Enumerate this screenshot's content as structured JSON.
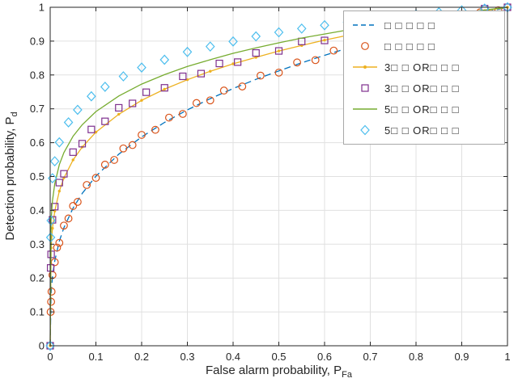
{
  "axes": {
    "xlabel": {
      "text": "False alarm probability, P",
      "sub": "Fa"
    },
    "ylabel": {
      "text": "Detection probability, P",
      "sub": "d"
    },
    "tick_labels": [
      "0",
      "0.1",
      "0.2",
      "0.3",
      "0.4",
      "0.5",
      "0.6",
      "0.7",
      "0.8",
      "0.9",
      "1"
    ]
  },
  "legend": {
    "entries": [
      {
        "label": "□ □ □ □ □",
        "swatch": "dash-line",
        "color": "#0072BD"
      },
      {
        "label": "□ □ □ □ □",
        "swatch": "circle",
        "color": "#D95319"
      },
      {
        "label": "3□ □ OR□ □ □",
        "swatch": "line-dot",
        "color": "#EDB120"
      },
      {
        "label": "3□ □ OR□ □ □",
        "swatch": "square",
        "color": "#7E2F8E"
      },
      {
        "label": "5□ □ OR□ □ □",
        "swatch": "line",
        "color": "#77AC30"
      },
      {
        "label": "5□ □ OR□ □ □",
        "swatch": "diamond",
        "color": "#4DBEEE"
      }
    ]
  },
  "chart_data": {
    "type": "line",
    "title": "",
    "xlabel": "False alarm probability, P_Fa",
    "ylabel": "Detection probability, P_d",
    "xlim": [
      0,
      1
    ],
    "ylim": [
      0,
      1
    ],
    "xticks": [
      0,
      0.1,
      0.2,
      0.3,
      0.4,
      0.5,
      0.6,
      0.7,
      0.8,
      0.9,
      1
    ],
    "yticks": [
      0,
      0.1,
      0.2,
      0.3,
      0.4,
      0.5,
      0.6,
      0.7,
      0.8,
      0.9,
      1
    ],
    "grid": true,
    "legend_position": "northeast",
    "series": [
      {
        "name": "single-user-theory",
        "color": "#0072BD",
        "line": "dashed",
        "marker": "none",
        "x": [
          0,
          0.002,
          0.005,
          0.01,
          0.02,
          0.03,
          0.05,
          0.07,
          0.1,
          0.15,
          0.2,
          0.25,
          0.3,
          0.35,
          0.4,
          0.45,
          0.5,
          0.55,
          0.6,
          0.65,
          0.7,
          0.75,
          0.8,
          0.85,
          0.9,
          0.95,
          1
        ],
        "y": [
          0,
          0.155,
          0.204,
          0.251,
          0.309,
          0.349,
          0.407,
          0.45,
          0.501,
          0.566,
          0.617,
          0.66,
          0.697,
          0.73,
          0.76,
          0.787,
          0.812,
          0.836,
          0.858,
          0.879,
          0.899,
          0.917,
          0.935,
          0.952,
          0.969,
          0.985,
          1
        ]
      },
      {
        "name": "single-user-sim",
        "color": "#D95319",
        "line": "none",
        "marker": "circle",
        "x": [
          0,
          0.001,
          0.002,
          0.003,
          0.005,
          0.01,
          0.015,
          0.02,
          0.03,
          0.04,
          0.05,
          0.06,
          0.08,
          0.1,
          0.12,
          0.14,
          0.16,
          0.18,
          0.2,
          0.23,
          0.26,
          0.29,
          0.32,
          0.35,
          0.38,
          0.42,
          0.46,
          0.5,
          0.54,
          0.58,
          0.62,
          0.66,
          0.7,
          0.74,
          0.78,
          0.82,
          0.86,
          0.9,
          0.94,
          0.98,
          1
        ],
        "y": [
          0,
          0.1,
          0.13,
          0.16,
          0.209,
          0.247,
          0.29,
          0.304,
          0.355,
          0.376,
          0.413,
          0.425,
          0.475,
          0.496,
          0.535,
          0.549,
          0.583,
          0.593,
          0.623,
          0.638,
          0.674,
          0.685,
          0.717,
          0.725,
          0.754,
          0.766,
          0.798,
          0.807,
          0.837,
          0.844,
          0.872,
          0.878,
          0.905,
          0.909,
          0.934,
          0.938,
          0.961,
          0.965,
          0.985,
          0.991,
          1
        ]
      },
      {
        "name": "or3-theory",
        "color": "#EDB120",
        "line": "solid",
        "marker": "dot",
        "x": [
          0,
          0.002,
          0.005,
          0.01,
          0.02,
          0.03,
          0.05,
          0.07,
          0.1,
          0.15,
          0.2,
          0.25,
          0.3,
          0.35,
          0.4,
          0.45,
          0.5,
          0.55,
          0.6,
          0.65,
          0.7,
          0.75,
          0.8,
          0.85,
          0.9,
          0.95,
          1
        ],
        "y": [
          0,
          0.289,
          0.347,
          0.398,
          0.457,
          0.496,
          0.549,
          0.587,
          0.631,
          0.684,
          0.725,
          0.758,
          0.786,
          0.811,
          0.833,
          0.852,
          0.871,
          0.887,
          0.903,
          0.917,
          0.931,
          0.944,
          0.956,
          0.968,
          0.979,
          0.99,
          1
        ]
      },
      {
        "name": "or3-sim",
        "color": "#7E2F8E",
        "line": "none",
        "marker": "square",
        "x": [
          0,
          0.001,
          0.002,
          0.005,
          0.01,
          0.02,
          0.03,
          0.05,
          0.07,
          0.09,
          0.12,
          0.15,
          0.18,
          0.21,
          0.25,
          0.29,
          0.33,
          0.37,
          0.41,
          0.45,
          0.5,
          0.55,
          0.6,
          0.65,
          0.7,
          0.75,
          0.8,
          0.85,
          0.9,
          0.95,
          1
        ],
        "y": [
          0,
          0.23,
          0.27,
          0.372,
          0.411,
          0.482,
          0.508,
          0.572,
          0.597,
          0.639,
          0.663,
          0.703,
          0.716,
          0.749,
          0.762,
          0.796,
          0.804,
          0.834,
          0.838,
          0.865,
          0.871,
          0.899,
          0.902,
          0.927,
          0.928,
          0.953,
          0.953,
          0.976,
          0.974,
          0.996,
          1
        ]
      },
      {
        "name": "or5-theory",
        "color": "#77AC30",
        "line": "solid",
        "marker": "none",
        "x": [
          0,
          0.002,
          0.005,
          0.01,
          0.02,
          0.03,
          0.05,
          0.07,
          0.1,
          0.15,
          0.2,
          0.25,
          0.3,
          0.35,
          0.4,
          0.45,
          0.5,
          0.55,
          0.6,
          0.65,
          0.7,
          0.75,
          0.8,
          0.85,
          0.9,
          0.95,
          1
        ],
        "y": [
          0,
          0.37,
          0.428,
          0.479,
          0.535,
          0.571,
          0.619,
          0.653,
          0.692,
          0.738,
          0.773,
          0.801,
          0.825,
          0.845,
          0.864,
          0.88,
          0.895,
          0.909,
          0.921,
          0.933,
          0.944,
          0.955,
          0.965,
          0.974,
          0.983,
          0.992,
          1
        ]
      },
      {
        "name": "or5-sim",
        "color": "#4DBEEE",
        "line": "none",
        "marker": "diamond",
        "x": [
          0,
          0.001,
          0.002,
          0.005,
          0.01,
          0.02,
          0.04,
          0.06,
          0.09,
          0.12,
          0.16,
          0.2,
          0.25,
          0.3,
          0.35,
          0.4,
          0.45,
          0.5,
          0.55,
          0.6,
          0.65,
          0.7,
          0.75,
          0.8,
          0.85,
          0.9,
          0.95,
          1
        ],
        "y": [
          0,
          0.32,
          0.37,
          0.495,
          0.545,
          0.601,
          0.66,
          0.697,
          0.737,
          0.765,
          0.796,
          0.822,
          0.845,
          0.868,
          0.884,
          0.899,
          0.914,
          0.926,
          0.937,
          0.947,
          0.956,
          0.964,
          0.972,
          0.979,
          0.985,
          0.991,
          0.996,
          1
        ]
      }
    ]
  }
}
